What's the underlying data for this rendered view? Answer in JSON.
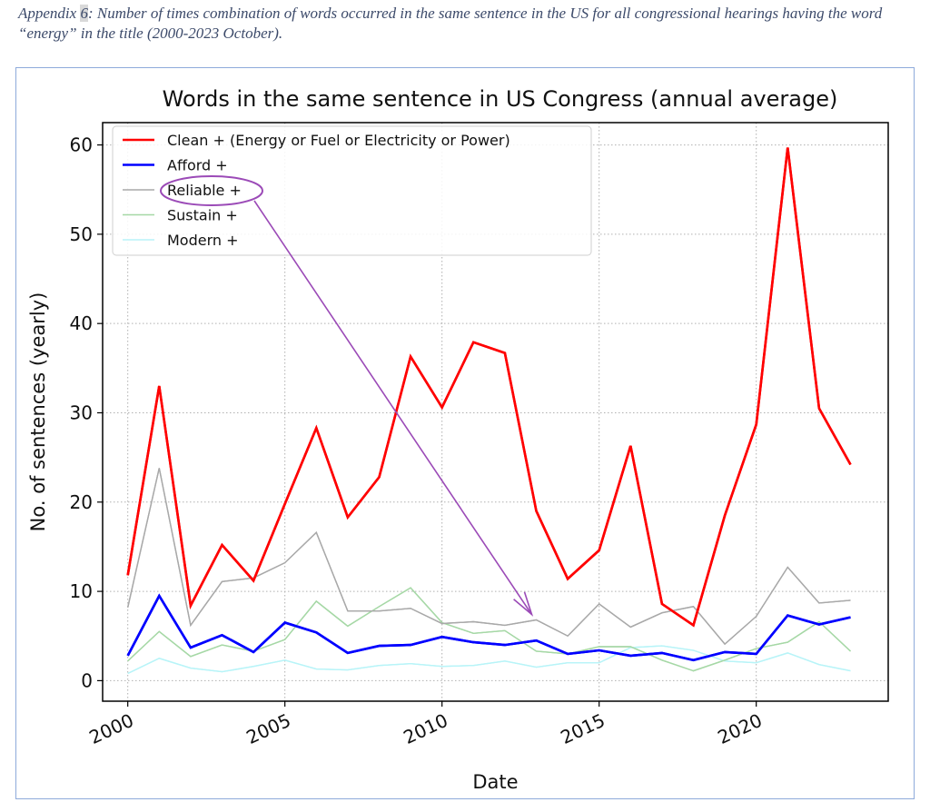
{
  "caption": {
    "prefix": "Appendix ",
    "number": "6",
    "text": ": Number of times combination of words occurred in the same sentence in the US for all congressional hearings having the word “energy” in the title (2000-2023 October)."
  },
  "chart_data": {
    "type": "line",
    "title": "Words in the same sentence in US Congress (annual average)",
    "xlabel": "Date",
    "ylabel": "No. of sentences (yearly)",
    "x": [
      2000,
      2001,
      2002,
      2003,
      2004,
      2005,
      2006,
      2007,
      2008,
      2009,
      2010,
      2011,
      2012,
      2013,
      2014,
      2015,
      2016,
      2017,
      2018,
      2019,
      2020,
      2021,
      2022,
      2023
    ],
    "xticks": [
      2000,
      2005,
      2010,
      2015,
      2020
    ],
    "yticks": [
      0,
      10,
      20,
      30,
      40,
      50,
      60
    ],
    "xlim": [
      1999.2,
      2024.2
    ],
    "ylim": [
      -2.3,
      62.5
    ],
    "grid": true,
    "legend_position": "top-left",
    "series": [
      {
        "name": "Clean + (Energy or Fuel or Electricity or Power)",
        "color": "#ff0000",
        "width": 2.6,
        "values": [
          11.8,
          33.0,
          8.4,
          15.2,
          11.2,
          19.8,
          28.3,
          18.3,
          22.8,
          36.3,
          30.6,
          37.9,
          36.7,
          19.0,
          11.4,
          14.6,
          26.3,
          8.6,
          6.2,
          18.5,
          28.7,
          59.7,
          30.5,
          24.2
        ]
      },
      {
        "name": "Afford +",
        "color": "#0000ff",
        "width": 2.6,
        "values": [
          2.8,
          9.5,
          3.7,
          5.1,
          3.2,
          6.5,
          5.4,
          3.1,
          3.9,
          4.0,
          4.9,
          4.3,
          4.0,
          4.5,
          3.0,
          3.4,
          2.8,
          3.1,
          2.3,
          3.2,
          3.0,
          7.3,
          6.3,
          7.1
        ]
      },
      {
        "name": "Reliable +",
        "color": "#a9a9a9",
        "width": 1.4,
        "values": [
          8.2,
          23.8,
          6.2,
          11.1,
          11.5,
          13.2,
          16.6,
          7.8,
          7.8,
          8.1,
          6.4,
          6.6,
          6.2,
          6.8,
          5.0,
          8.6,
          6.0,
          7.6,
          8.3,
          4.1,
          7.2,
          12.7,
          8.7,
          9.0
        ]
      },
      {
        "name": "Sustain +",
        "color": "#a6d8a6",
        "width": 1.4,
        "values": [
          2.2,
          5.5,
          2.7,
          4.0,
          3.3,
          4.6,
          8.9,
          6.1,
          8.3,
          10.4,
          6.5,
          5.3,
          5.6,
          3.3,
          3.0,
          3.8,
          3.8,
          2.3,
          1.1,
          2.3,
          3.6,
          4.3,
          6.6,
          3.3
        ]
      },
      {
        "name": "Modern +",
        "color": "#b8f4f8",
        "width": 1.4,
        "values": [
          0.8,
          2.5,
          1.4,
          1.0,
          1.6,
          2.3,
          1.3,
          1.2,
          1.7,
          1.9,
          1.6,
          1.7,
          2.2,
          1.5,
          2.0,
          2.0,
          3.7,
          3.9,
          3.4,
          2.2,
          2.0,
          3.1,
          1.8,
          1.1
        ]
      }
    ],
    "annotation": {
      "target_series": "Reliable +",
      "target_x": 2013,
      "color": "#9b4ab7"
    }
  }
}
